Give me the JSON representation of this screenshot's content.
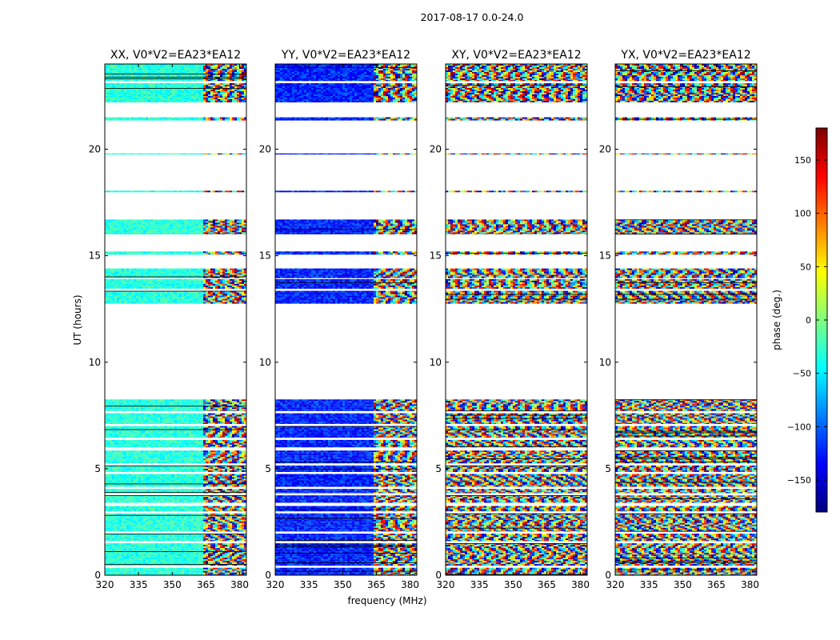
{
  "figure": {
    "suptitle": "2017-08-17 0.0-24.0"
  },
  "chart_data": {
    "type": "heatmap",
    "title": "2017-08-17 0.0-24.0",
    "xlabel": "frequency (MHz)",
    "ylabel": "UT (hours)",
    "xlim": [
      320,
      383
    ],
    "ylim": [
      0,
      24
    ],
    "xticks": [
      320,
      335,
      350,
      365,
      380
    ],
    "xtick_labels": [
      "320",
      "335",
      "350",
      "365",
      "380"
    ],
    "yticks": [
      0,
      5,
      10,
      15,
      20
    ],
    "ytick_labels": [
      "0",
      "5",
      "10",
      "15",
      "20"
    ],
    "panels": [
      {
        "title": "XX, V0*V2=EA23*EA12"
      },
      {
        "title": "YY, V0*V2=EA23*EA12"
      },
      {
        "title": "XY, V0*V2=EA23*EA12"
      },
      {
        "title": "YX, V0*V2=EA23*EA12"
      }
    ],
    "observed_time_ranges_hours": [
      [
        0.0,
        0.35
      ],
      [
        0.45,
        1.5
      ],
      [
        1.6,
        1.95
      ],
      [
        2.05,
        2.9
      ],
      [
        3.0,
        3.25
      ],
      [
        3.4,
        3.75
      ],
      [
        3.85,
        4.05
      ],
      [
        4.15,
        4.75
      ],
      [
        4.85,
        5.15
      ],
      [
        5.25,
        5.85
      ],
      [
        6.0,
        6.35
      ],
      [
        6.45,
        7.0
      ],
      [
        7.1,
        7.6
      ],
      [
        7.7,
        8.25
      ],
      [
        12.75,
        13.35
      ],
      [
        13.45,
        13.9
      ],
      [
        13.95,
        14.4
      ],
      [
        15.05,
        15.2
      ],
      [
        16.0,
        16.7
      ],
      [
        17.98,
        18.05
      ],
      [
        19.75,
        19.8
      ],
      [
        21.35,
        21.5
      ],
      [
        22.2,
        23.1
      ],
      [
        23.2,
        24.0
      ]
    ],
    "colorbar": {
      "label": "phase (deg.)",
      "range": [
        -180,
        180
      ],
      "ticks": [
        150,
        100,
        50,
        0,
        -50,
        -100,
        -150
      ],
      "tick_labels": [
        "150",
        "100",
        "50",
        "0",
        "−50",
        "−100",
        "−150"
      ],
      "colormap": "jet",
      "colors": [
        "#00007f",
        "#0000ff",
        "#007fff",
        "#00ffff",
        "#7fff7f",
        "#ffff00",
        "#ff7f00",
        "#ff0000",
        "#7f0000"
      ]
    }
  }
}
